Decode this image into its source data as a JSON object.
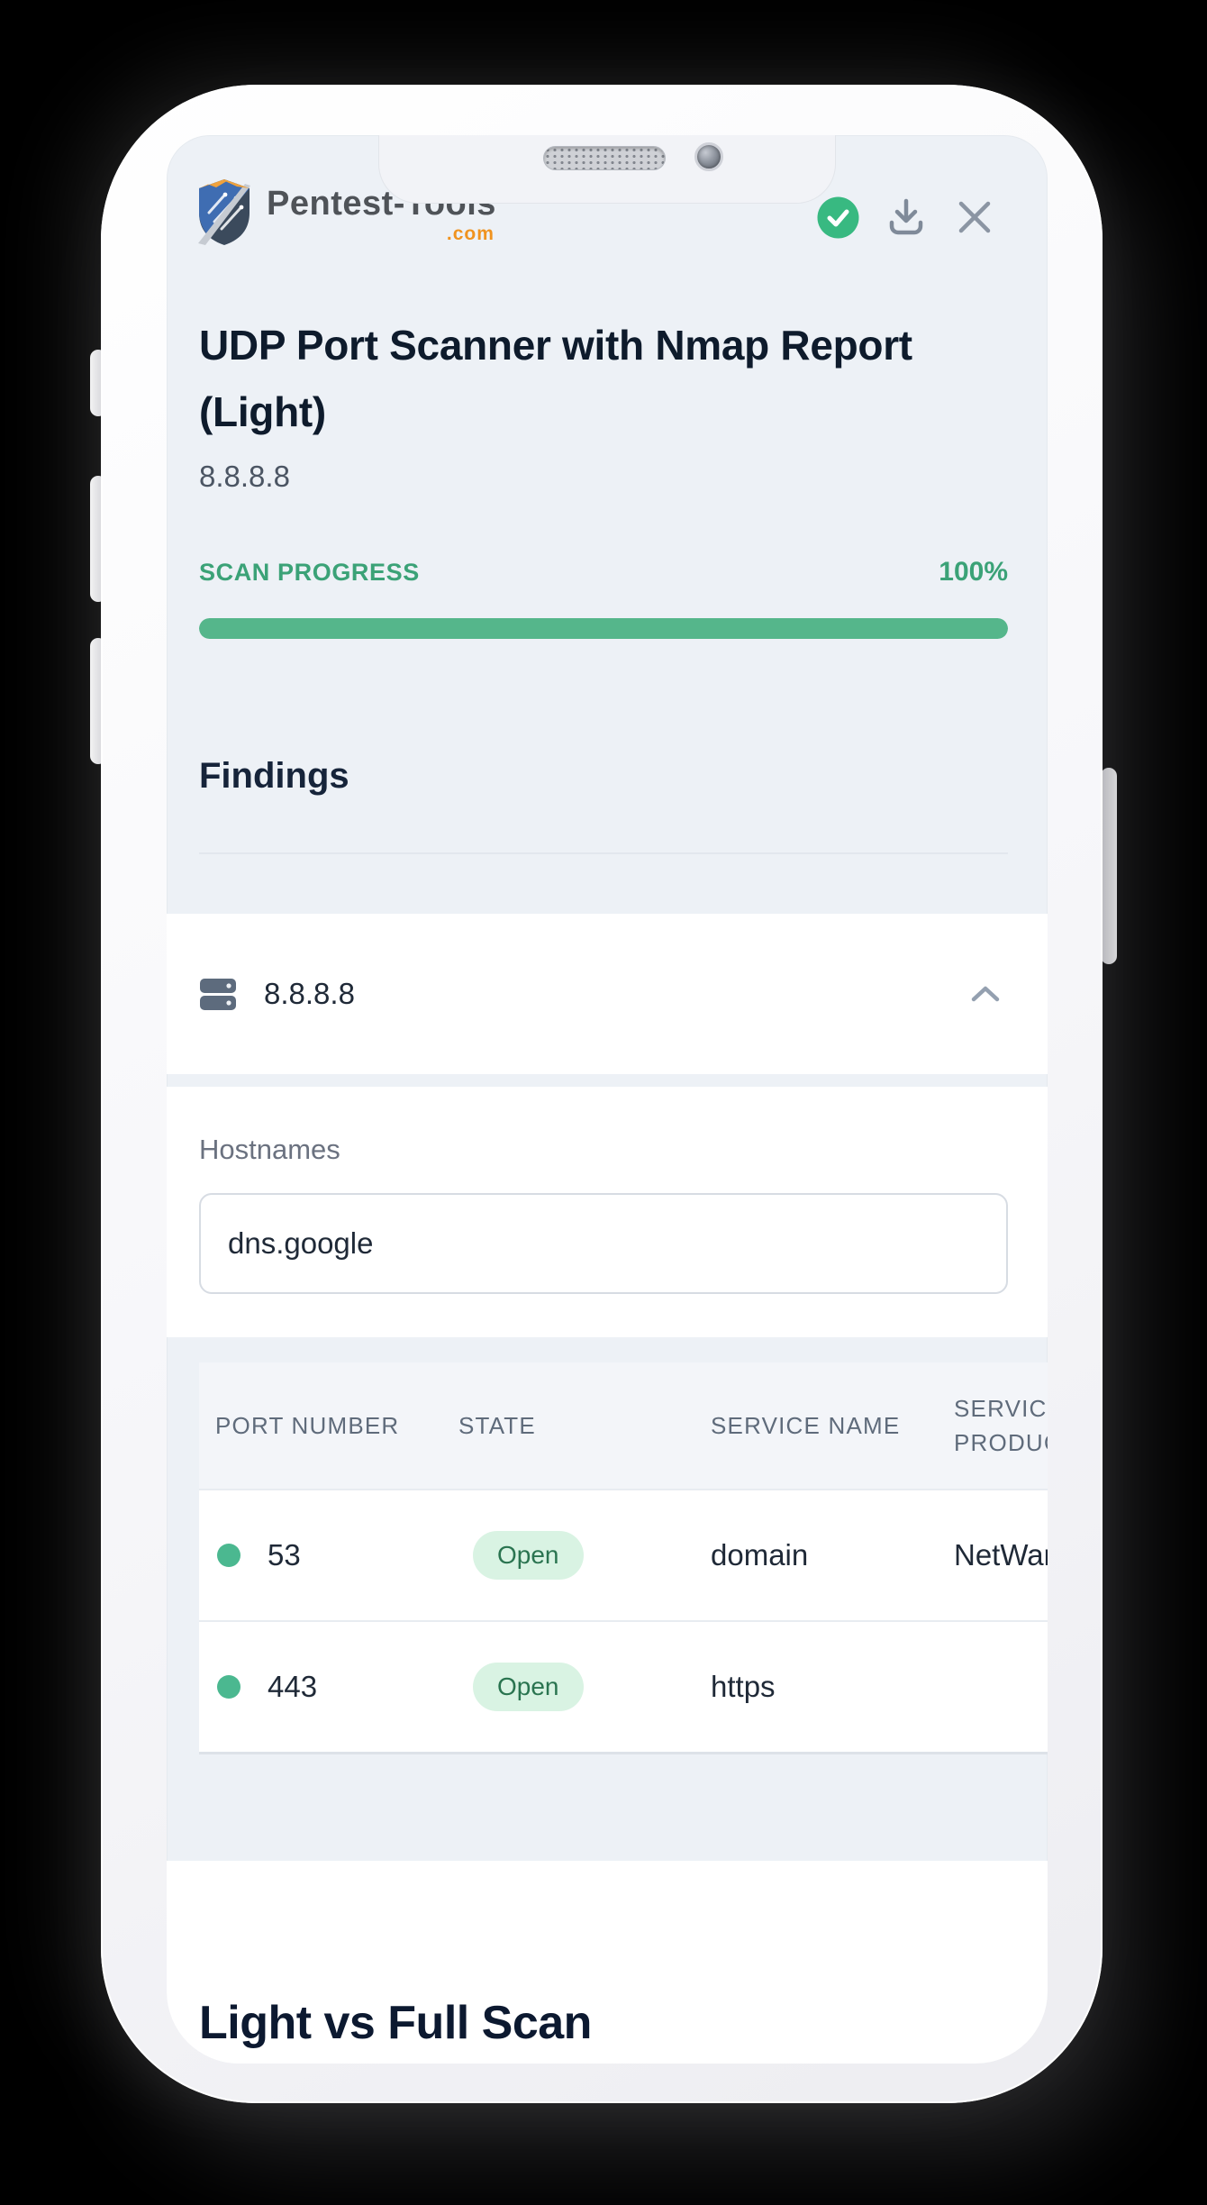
{
  "header": {
    "logo": {
      "text": "Pentest-Tools",
      "tld": ".com",
      "icon": "shield-logo-icon"
    },
    "actions": [
      {
        "icon": "check-badge-icon",
        "meaning": "scan finished",
        "color": "#38b981"
      },
      {
        "icon": "download-icon"
      },
      {
        "icon": "close-icon"
      }
    ]
  },
  "report": {
    "title": "UDP Port Scanner with Nmap Report (Light)",
    "target": "8.8.8.8",
    "progress_label": "SCAN PROGRESS",
    "progress_value": "100%",
    "progress_percent": 100
  },
  "findings": {
    "heading": "Findings",
    "host": {
      "icon": "server-icon",
      "ip": "8.8.8.8",
      "expanded": true
    },
    "hostnames_label": "Hostnames",
    "hostnames_value": "dns.google",
    "table": {
      "columns": [
        "PORT NUMBER",
        "STATE",
        "SERVICE NAME",
        "SERVICE PRODUCT"
      ],
      "rows": [
        {
          "status_icon": "open-port-dot",
          "port": "53",
          "state": "Open",
          "service_name": "domain",
          "service_product": "NetWare"
        },
        {
          "status_icon": "open-port-dot",
          "port": "443",
          "state": "Open",
          "service_name": "https",
          "service_product": ""
        }
      ]
    }
  },
  "section_below": {
    "heading": "Light vs Full Scan"
  },
  "colors": {
    "accent_green_text": "#3ba277",
    "progress_bar_green": "#55b68b",
    "open_dot_green": "#4bb890",
    "open_badge_bg": "#d9f3e3",
    "open_badge_text": "#2a7450",
    "screen_background": "#edf1f6",
    "heading_text": "#0e1b2c"
  }
}
